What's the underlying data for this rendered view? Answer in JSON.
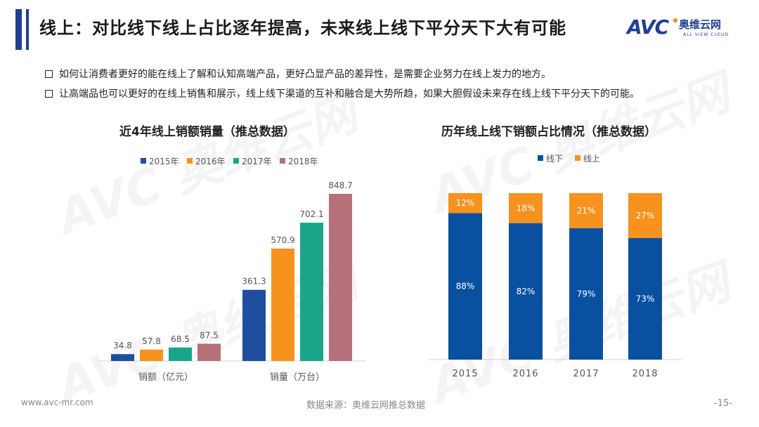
{
  "header": {
    "title": "线上：对比线下线上占比逐年提高，未来线上线下平分天下大有可能",
    "accent_color": "#1f3f93"
  },
  "logo": {
    "brand": "AVC",
    "name_cn": "奥维云网",
    "name_en": "ALL VIEW CLOUD"
  },
  "bullets": [
    "如何让消费者更好的能在线上了解和认知高端产品，更好凸显产品的差异性，是需要企业努力在线上发力的地方。",
    "让高端品也可以更好的在线上销售和展示，线上线下渠道的互补和融合是大势所趋，如果大胆假设未来存在线上线下平分天下的可能。"
  ],
  "watermark_text": "AVC 奥维云网",
  "chart_data": [
    {
      "type": "bar",
      "title": "近4年线上销额销量（推总数据）",
      "categories": [
        "销额（亿元）",
        "销量（万台）"
      ],
      "series": [
        {
          "name": "2015年",
          "color": "#1f4e9e",
          "values": [
            34.8,
            361.3
          ]
        },
        {
          "name": "2016年",
          "color": "#f7921e",
          "values": [
            57.8,
            570.9
          ]
        },
        {
          "name": "2017年",
          "color": "#1aa58a",
          "values": [
            68.5,
            702.1
          ]
        },
        {
          "name": "2018年",
          "color": "#b5707a",
          "values": [
            87.5,
            848.7
          ]
        }
      ],
      "ylim": [
        0,
        900
      ],
      "legend": "top"
    },
    {
      "type": "bar",
      "stacked": true,
      "title": "历年线上线下销额占比情况（推总数据）",
      "categories": [
        "2015",
        "2016",
        "2017",
        "2018"
      ],
      "series": [
        {
          "name": "线下",
          "color": "#0a50a0",
          "values": [
            88,
            82,
            79,
            73
          ],
          "labels": [
            "88%",
            "82%",
            "79%",
            "73%"
          ]
        },
        {
          "name": "线上",
          "color": "#f7921e",
          "values": [
            12,
            18,
            21,
            27
          ],
          "labels": [
            "12%",
            "18%",
            "21%",
            "27%"
          ]
        }
      ],
      "ylim": [
        0,
        100
      ],
      "legend": "top"
    }
  ],
  "footer": {
    "url": "www.avc-mr.com",
    "source": "数据来源：奥维云网推总数据",
    "page": "-15-"
  }
}
